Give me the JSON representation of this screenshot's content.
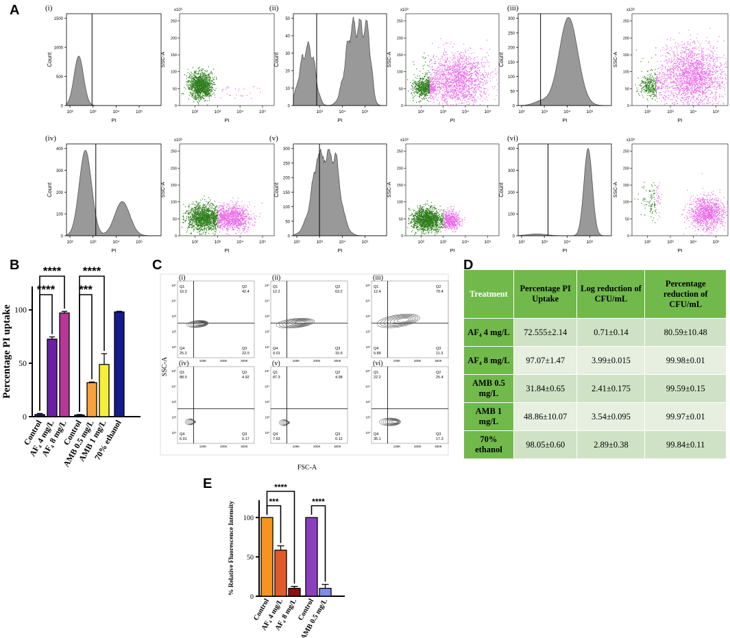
{
  "panel_labels": {
    "A": "A",
    "B": "B",
    "C": "C",
    "D": "D",
    "E": "E"
  },
  "colors": {
    "histogram_fill": "#999999",
    "dot_green": "#2e7d1c",
    "dot_pink": "#ea6be8",
    "purple": "#6a1fa6",
    "magenta": "#b73796",
    "navy": "#141b8c",
    "orange": "#f7a23a",
    "yellow": "#f6ef3a",
    "e_orange": "#f7941e",
    "e_red": "#e05a2b",
    "e_darkred": "#8b1010",
    "e_purple": "#8b3fbf",
    "e_blue": "#7f8de8",
    "table_header": "#71b94a"
  },
  "panel_a": {
    "axis_common": {
      "x_label": "PI",
      "y_hist_label": "Count",
      "y_scatter_label": "SSC-A",
      "scatter_scale": "x10³"
    },
    "panels": [
      {
        "label": "(i)",
        "hist_yticks": [
          "0",
          "500",
          "1000",
          "1500"
        ],
        "scatter_yticks": [
          "0",
          "50",
          "100",
          "150",
          "200",
          "250"
        ],
        "hist_xticks": [
          "10²",
          "10³",
          "10⁴",
          "10⁵"
        ],
        "scatter_xticks": [
          "10²",
          "10³",
          "10⁴",
          "10⁵"
        ]
      },
      {
        "label": "(ii)",
        "hist_yticks": [
          "0",
          "10",
          "20",
          "30",
          "40",
          "50"
        ],
        "scatter_yticks": [
          "0",
          "50",
          "100",
          "150",
          "200",
          "250"
        ],
        "hist_xticks": [
          "10³",
          "10⁴",
          "10⁵"
        ],
        "scatter_xticks": [
          "10²",
          "10³",
          "10⁴",
          "10⁵"
        ]
      },
      {
        "label": "(iii)",
        "hist_yticks": [
          "0",
          "50",
          "100",
          "150",
          "200",
          "250",
          "300"
        ],
        "scatter_yticks": [
          "0",
          "50",
          "100",
          "150",
          "200",
          "250"
        ],
        "hist_xticks": [
          "10²",
          "10³",
          "10⁴",
          "10⁵"
        ],
        "scatter_xticks": [
          "10²",
          "10³",
          "10⁴",
          "10⁵"
        ]
      },
      {
        "label": "(iv)",
        "hist_yticks": [
          "0",
          "100",
          "200",
          "300",
          "400"
        ],
        "scatter_yticks": [
          "0",
          "50",
          "100",
          "150",
          "200",
          "250"
        ],
        "hist_xticks": [
          "10²",
          "10³",
          "10⁴",
          "10⁵"
        ],
        "scatter_xticks": [
          "10²",
          "10³",
          "10⁴",
          "10⁵"
        ]
      },
      {
        "label": "(v)",
        "hist_yticks": [
          "0",
          "50",
          "100",
          "150",
          "200",
          "250",
          "300"
        ],
        "scatter_yticks": [
          "0",
          "50",
          "100",
          "150",
          "200",
          "250"
        ],
        "hist_xticks": [
          "10²",
          "10³",
          "10⁴",
          "10⁵"
        ],
        "scatter_xticks": [
          "10²",
          "10³",
          "10⁴",
          "10⁵"
        ]
      },
      {
        "label": "(vi)",
        "hist_yticks": [
          "0",
          "100",
          "200",
          "300",
          "400"
        ],
        "scatter_yticks": [
          "0",
          "50",
          "100",
          "150",
          "200",
          "250"
        ],
        "hist_xticks": [
          "10²",
          "10³",
          "10⁴",
          "10⁵"
        ],
        "scatter_xticks": [
          "10²",
          "10³",
          "10⁴",
          "10⁵"
        ]
      }
    ]
  },
  "panel_c": {
    "x_label": "FSC-A",
    "y_label": "SSC-A",
    "x_ticks": [
      "100K",
      "200K",
      "300K"
    ],
    "y_ticks": [
      "10¹",
      "10²",
      "10³",
      "10⁴",
      "10⁵"
    ],
    "quadrant_names": [
      "Q1",
      "Q2",
      "Q3",
      "Q4"
    ],
    "panels": [
      {
        "label": "(i)",
        "Q1": "10.3",
        "Q2": "42.4",
        "Q3": "22.0",
        "Q4": "25.2"
      },
      {
        "label": "(ii)",
        "Q1": "12.2",
        "Q2": "63.2",
        "Q3": "15.6",
        "Q4": "9.01"
      },
      {
        "label": "(iii)",
        "Q1": "12.4",
        "Q2": "70.4",
        "Q3": "11.3",
        "Q4": "5.89"
      },
      {
        "label": "(iv)",
        "Q1": "88.0",
        "Q2": "4.92",
        "Q3": "0.17",
        "Q4": "6.91"
      },
      {
        "label": "(v)",
        "Q1": "87.3",
        "Q2": "4.98",
        "Q3": "0.12",
        "Q4": "7.63"
      },
      {
        "label": "(vi)",
        "Q1": "22.2",
        "Q2": "25.4",
        "Q3": "17.3",
        "Q4": "35.1"
      }
    ]
  },
  "table_d": {
    "headers": [
      "Treatment",
      "Percentage PI Uptake",
      "Log reduction of CFU/mL",
      "Percentage reduction of CFU/mL"
    ],
    "rows": [
      {
        "treatment": "AF₄ 4 mg/L",
        "pi": "72.555±2.14",
        "log": "0.71±0.14",
        "pct": "80.59±10.48"
      },
      {
        "treatment": "AF₄ 8 mg/L",
        "pi": "97.07±1.47",
        "log": "3.99±0.015",
        "pct": "99.98±0.01"
      },
      {
        "treatment": "AMB 0.5 mg/L",
        "pi": "31.84±0.65",
        "log": "2.41±0.175",
        "pct": "99.59±0.15"
      },
      {
        "treatment": "AMB 1 mg/L",
        "pi": "48.86±10.07",
        "log": "3.54±0.095",
        "pct": "99.97±0.01"
      },
      {
        "treatment": "70% ethanol",
        "pi": "98.05±0.60",
        "log": "2.89±0.38",
        "pct": "99.84±0.11"
      }
    ]
  },
  "chart_data": [
    {
      "type": "bar",
      "panel": "B",
      "title": "",
      "xlabel": "",
      "ylabel": "Percentage PI uptake",
      "ylim": [
        0,
        100
      ],
      "yticks": [
        "0",
        "50",
        "100"
      ],
      "categories": [
        "Control",
        "AF₄ 4 mg/L",
        "AF₄ 8 mg/L",
        "Control",
        "AMB 0.5 mg/L",
        "AMB 1 mg/L",
        "70% ethanol"
      ],
      "values": [
        2,
        72.6,
        97.1,
        1.5,
        31.8,
        48.9,
        98.1
      ],
      "errors": [
        1,
        2.1,
        1.5,
        0.5,
        0.7,
        10.1,
        0.6
      ],
      "colors": [
        "#141b8c",
        "#6a1fa6",
        "#b73796",
        "#141b8c",
        "#f7a23a",
        "#f6ef3a",
        "#141b8c"
      ],
      "significance": [
        {
          "from": 0,
          "to": 1,
          "label": "****"
        },
        {
          "from": 0,
          "to": 2,
          "label": "****"
        },
        {
          "from": 3,
          "to": 4,
          "label": "***"
        },
        {
          "from": 3,
          "to": 5,
          "label": "****"
        }
      ]
    },
    {
      "type": "bar",
      "panel": "E",
      "title": "",
      "xlabel": "",
      "ylabel": "% Relative Fluorescence Intensity",
      "ylim": [
        0,
        100
      ],
      "yticks": [
        "0",
        "50",
        "100"
      ],
      "categories": [
        "Control",
        "AF₄ 4 mg/L",
        "AF₄ 8 mg/L",
        "Control",
        "AMB 0.5 mg/L"
      ],
      "values": [
        100,
        58.5,
        10,
        100,
        10
      ],
      "errors": [
        0,
        5.5,
        2.5,
        0,
        5
      ],
      "colors": [
        "#f7941e",
        "#e05a2b",
        "#8b1010",
        "#8b3fbf",
        "#7f8de8"
      ],
      "significance": [
        {
          "from": 0,
          "to": 1,
          "label": "***"
        },
        {
          "from": 0,
          "to": 2,
          "label": "****"
        },
        {
          "from": 3,
          "to": 4,
          "label": "****"
        }
      ]
    }
  ]
}
